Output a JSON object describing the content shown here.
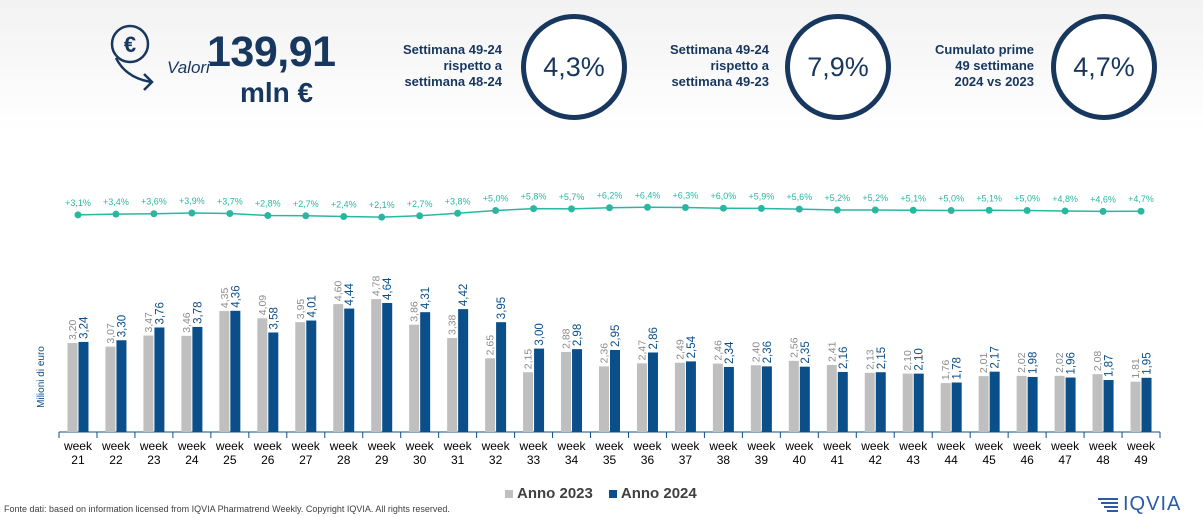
{
  "header": {
    "valori_label": "Valori",
    "total_value": "139,91",
    "total_unit": "mln €",
    "kpis": [
      {
        "label_lines": [
          "Settimana 49-24",
          "rispetto a",
          "settimana 48-24"
        ],
        "value": "4,3%"
      },
      {
        "label_lines": [
          "Settimana 49-24",
          "rispetto a",
          "settimana 49-23"
        ],
        "value": "7,9%"
      },
      {
        "label_lines": [
          "Cumulato prime",
          "49 settimane",
          "2024 vs 2023"
        ],
        "value": "4,7%"
      }
    ]
  },
  "colors": {
    "navy": "#17375e",
    "series_2023": "#bfbfbf",
    "series_2024": "#0b4f8a",
    "growth_line": "#2ab7a2",
    "axis": "#0b4f8a"
  },
  "chart_data": {
    "type": "bar",
    "ylabel": "Milioni di euro",
    "categories": [
      "week 21",
      "week 22",
      "week 23",
      "week 24",
      "week 25",
      "week 26",
      "week 27",
      "week 28",
      "week 29",
      "week 30",
      "week 31",
      "week 32",
      "week 33",
      "week 34",
      "week 35",
      "week 36",
      "week 37",
      "week 38",
      "week 39",
      "week 40",
      "week 41",
      "week 42",
      "week 43",
      "week 44",
      "week 45",
      "week 46",
      "week 47",
      "week 48",
      "week 49"
    ],
    "series": [
      {
        "name": "Anno 2023",
        "values": [
          3.2,
          3.07,
          3.47,
          3.46,
          4.35,
          4.09,
          3.95,
          4.6,
          4.78,
          3.86,
          3.38,
          2.65,
          2.15,
          2.88,
          2.36,
          2.47,
          2.49,
          2.46,
          2.4,
          2.56,
          2.41,
          2.13,
          2.1,
          1.76,
          2.01,
          2.02,
          2.02,
          2.08,
          1.81
        ],
        "labels": [
          "3,20",
          "3,07",
          "3,47",
          "3,46",
          "4,35",
          "4,09",
          "3,95",
          "4,60",
          "4,78",
          "3,86",
          "3,38",
          "2,65",
          "2,15",
          "2,88",
          "2,36",
          "2,47",
          "2,49",
          "2,46",
          "2,40",
          "2,56",
          "2,41",
          "2,13",
          "2,10",
          "1,76",
          "2,01",
          "2,02",
          "2,02",
          "2,08",
          "1,81"
        ]
      },
      {
        "name": "Anno 2024",
        "values": [
          3.24,
          3.3,
          3.76,
          3.78,
          4.36,
          3.58,
          4.01,
          4.44,
          4.64,
          4.31,
          4.42,
          3.95,
          3.0,
          2.98,
          2.95,
          2.86,
          2.54,
          2.34,
          2.36,
          2.35,
          2.16,
          2.15,
          2.1,
          1.78,
          2.17,
          1.98,
          1.96,
          1.87,
          1.95
        ],
        "labels": [
          "3,24",
          "3,30",
          "3,76",
          "3,78",
          "4,36",
          "3,58",
          "4,01",
          "4,44",
          "4,64",
          "4,31",
          "4,42",
          "3,95",
          "3,00",
          "2,98",
          "2,95",
          "2,86",
          "2,54",
          "2,34",
          "2,36",
          "2,35",
          "2,16",
          "2,15",
          "2,10",
          "1,78",
          "2,17",
          "1,98",
          "1,96",
          "1,87",
          "1,95"
        ]
      }
    ],
    "growth": {
      "values": [
        3.1,
        3.4,
        3.6,
        3.9,
        3.7,
        2.8,
        2.7,
        2.4,
        2.1,
        2.7,
        3.8,
        5.0,
        5.8,
        5.7,
        6.2,
        6.4,
        6.3,
        6.0,
        5.9,
        5.6,
        5.2,
        5.2,
        5.1,
        5.0,
        5.1,
        5.0,
        4.8,
        4.6,
        4.7
      ],
      "labels": [
        "+3,1%",
        "+3,4%",
        "+3,6%",
        "+3,9%",
        "+3,7%",
        "+2,8%",
        "+2,7%",
        "+2,4%",
        "+2,1%",
        "+2,7%",
        "+3,8%",
        "+5,0%",
        "+5,8%",
        "+5,7%",
        "+6,2%",
        "+6,4%",
        "+6,3%",
        "+6,0%",
        "+5,9%",
        "+5,6%",
        "+5,2%",
        "+5,2%",
        "+5,1%",
        "+5,0%",
        "+5,1%",
        "+5,0%",
        "+4,8%",
        "+4,6%",
        "+4,7%"
      ]
    },
    "legend": "bottom-center",
    "grid": false
  },
  "footer": {
    "source": "Fonte dati: based on information licensed from IQVIA Pharmatrend Weekly. Copyright IQVIA. All rights reserved.",
    "logo_text": "IQVIA"
  }
}
